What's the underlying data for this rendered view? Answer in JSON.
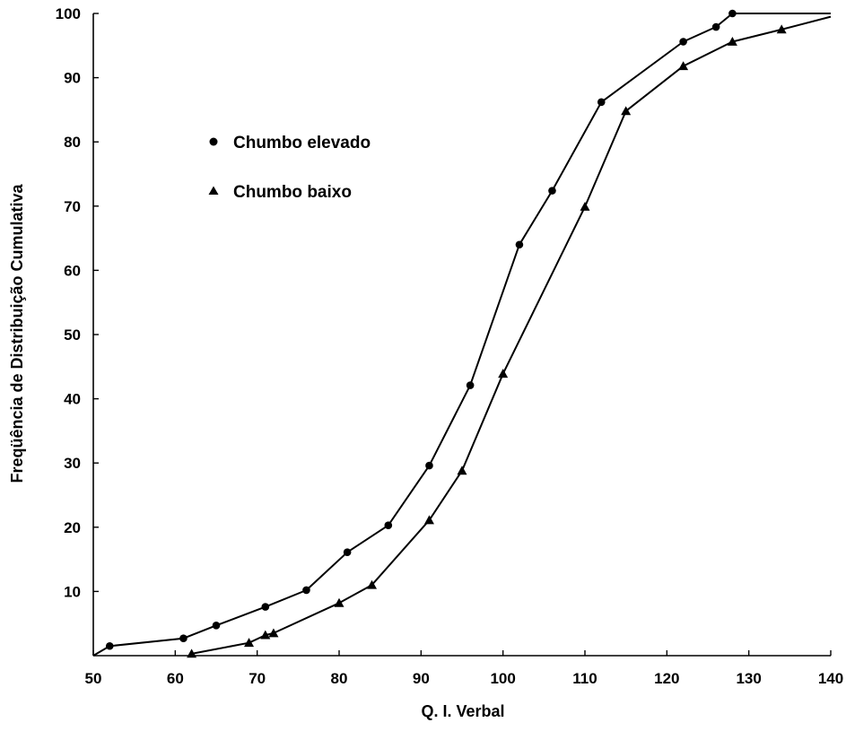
{
  "chart_data": {
    "type": "line",
    "title": "",
    "xlabel": "Q. I. Verbal",
    "ylabel": "Freqüência de Distribuição Cumulativa",
    "xlim": [
      50,
      140
    ],
    "ylim": [
      0,
      100
    ],
    "x_ticks": [
      50,
      60,
      70,
      80,
      90,
      100,
      110,
      120,
      130,
      140
    ],
    "y_ticks": [
      10,
      20,
      30,
      40,
      50,
      60,
      70,
      80,
      90,
      100
    ],
    "grid": false,
    "legend_position": "upper-left",
    "series": [
      {
        "name": "Chumbo elevado",
        "marker": "circle",
        "x": [
          50,
          52,
          61,
          65,
          71,
          76,
          81,
          86,
          91,
          96,
          102,
          106,
          112,
          122,
          126,
          128,
          140
        ],
        "y": [
          0,
          1.5,
          2.7,
          4.7,
          7.6,
          10.2,
          16.1,
          20.3,
          29.6,
          42.1,
          64.0,
          72.4,
          86.2,
          95.6,
          97.9,
          100,
          100
        ],
        "markers": [
          [
            52,
            1.5
          ],
          [
            61,
            2.7
          ],
          [
            65,
            4.7
          ],
          [
            71,
            7.6
          ],
          [
            76,
            10.2
          ],
          [
            81,
            16.1
          ],
          [
            86,
            20.3
          ],
          [
            91,
            29.6
          ],
          [
            96,
            42.1
          ],
          [
            102,
            64.0
          ],
          [
            106,
            72.4
          ],
          [
            112,
            86.2
          ],
          [
            122,
            95.6
          ],
          [
            126,
            97.9
          ],
          [
            128,
            100
          ]
        ]
      },
      {
        "name": "Chumbo baixo",
        "marker": "triangle",
        "x": [
          62,
          69,
          71,
          72,
          80,
          84,
          91,
          95,
          100,
          110,
          115,
          122,
          128,
          134,
          140
        ],
        "y": [
          0.3,
          2.0,
          3.2,
          3.5,
          8.2,
          11.0,
          21.1,
          28.8,
          43.9,
          69.9,
          84.8,
          91.8,
          95.6,
          97.5,
          99.5
        ],
        "markers": [
          [
            62,
            0.3
          ],
          [
            69,
            2.0
          ],
          [
            71,
            3.2
          ],
          [
            72,
            3.5
          ],
          [
            80,
            8.2
          ],
          [
            84,
            11.0
          ],
          [
            91,
            21.1
          ],
          [
            95,
            28.8
          ],
          [
            100,
            43.9
          ],
          [
            110,
            69.9
          ],
          [
            115,
            84.8
          ],
          [
            122,
            91.8
          ],
          [
            128,
            95.6
          ],
          [
            134,
            97.5
          ]
        ]
      }
    ]
  }
}
